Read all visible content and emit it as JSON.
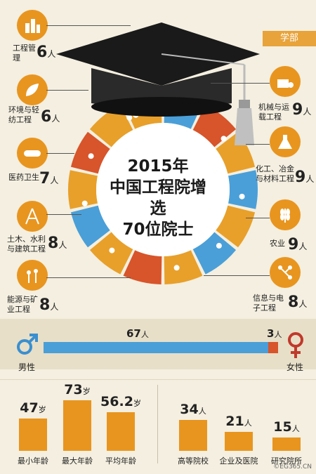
{
  "tag": "学部",
  "title": {
    "line1": "2015年",
    "line2": "中国工程院增选",
    "line3": "70位院士"
  },
  "ring_colors": {
    "blue": "#4a9fd8",
    "orange": "#e8a02a",
    "red": "#d8542a",
    "accent": "#e8951f"
  },
  "categories": [
    {
      "name": "工程管理",
      "count": "6",
      "unit": "人",
      "icon": "building-icon"
    },
    {
      "name": "环境与轻纺工程",
      "count": "6",
      "unit": "人",
      "icon": "leaf-icon"
    },
    {
      "name": "医药卫生",
      "count": "7",
      "unit": "人",
      "icon": "pill-icon"
    },
    {
      "name": "土木、水利与建筑工程",
      "count": "8",
      "unit": "人",
      "icon": "tower-icon"
    },
    {
      "name": "能源与矿业工程",
      "count": "8",
      "unit": "人",
      "icon": "wind-turbine-icon"
    },
    {
      "name": "机械与运载工程",
      "count": "9",
      "unit": "人",
      "icon": "machine-icon"
    },
    {
      "name": "化工、冶金与材料工程",
      "count": "9",
      "unit": "人",
      "icon": "flask-icon"
    },
    {
      "name": "农业",
      "count": "9",
      "unit": "人",
      "icon": "wheat-icon"
    },
    {
      "name": "信息与电子工程",
      "count": "8",
      "unit": "人",
      "icon": "circuit-icon"
    }
  ],
  "gender": {
    "male": {
      "label": "男性",
      "count": "67",
      "unit": "人",
      "value": 67
    },
    "female": {
      "label": "女性",
      "count": "3",
      "unit": "人",
      "value": 3
    }
  },
  "age": [
    {
      "label": "最小年龄",
      "value": 47,
      "value_text": "47",
      "unit": "岁"
    },
    {
      "label": "最大年龄",
      "value": 73,
      "value_text": "73",
      "unit": "岁"
    },
    {
      "label": "平均年龄",
      "value": 56.2,
      "value_text": "56.2",
      "unit": "岁"
    }
  ],
  "institution": [
    {
      "label": "高等院校",
      "value": 34,
      "value_text": "34",
      "unit": "人"
    },
    {
      "label": "企业及医院",
      "value": 21,
      "value_text": "21",
      "unit": "人"
    },
    {
      "label": "研究院所",
      "value": 15,
      "value_text": "15",
      "unit": "人"
    }
  ],
  "watermark": "©EG365.CN",
  "chart_data": [
    {
      "type": "pie",
      "title": "2015年中国工程院增选70位院士",
      "categories": [
        "工程管理",
        "环境与轻纺工程",
        "医药卫生",
        "土木、水利与建筑工程",
        "能源与矿业工程",
        "机械与运载工程",
        "化工、冶金与材料工程",
        "农业",
        "信息与电子工程"
      ],
      "values": [
        6,
        6,
        7,
        8,
        8,
        9,
        9,
        9,
        8
      ]
    },
    {
      "type": "bar",
      "categories": [
        "男性",
        "女性"
      ],
      "values": [
        67,
        3
      ]
    },
    {
      "type": "bar",
      "categories": [
        "最小年龄",
        "最大年龄",
        "平均年龄"
      ],
      "values": [
        47,
        73,
        56.2
      ]
    },
    {
      "type": "bar",
      "categories": [
        "高等院校",
        "企业及医院",
        "研究院所"
      ],
      "values": [
        34,
        21,
        15
      ]
    }
  ]
}
